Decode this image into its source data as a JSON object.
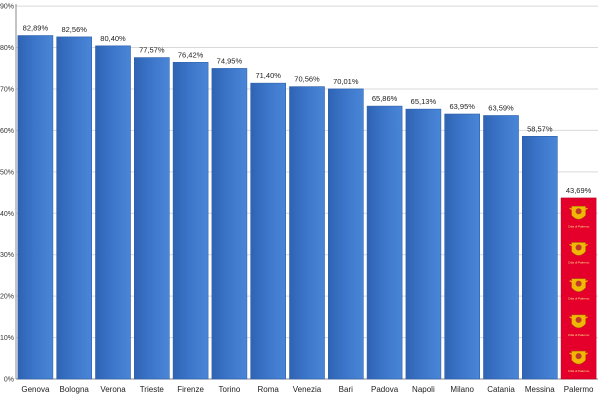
{
  "chart_data": {
    "type": "bar",
    "title": "",
    "xlabel": "",
    "ylabel": "",
    "ylim": [
      0,
      100
    ],
    "yticks": [
      "0%",
      "10%",
      "20%",
      "30%",
      "40%",
      "50%",
      "60%",
      "70%",
      "80%",
      "90%"
    ],
    "categories": [
      "Genova",
      "Bologna",
      "Verona",
      "Trieste",
      "Firenze",
      "Torino",
      "Roma",
      "Venezia",
      "Bari",
      "Padova",
      "Napoli",
      "Milano",
      "Catania",
      "Messina",
      "Palermo"
    ],
    "values": [
      82.89,
      82.56,
      80.4,
      77.57,
      76.42,
      74.95,
      71.4,
      70.56,
      70.01,
      65.86,
      65.13,
      63.95,
      63.59,
      58.57,
      43.69
    ],
    "value_labels": [
      "82,89%",
      "82,56%",
      "80,40%",
      "77,57%",
      "76,42%",
      "74,95%",
      "71,40%",
      "70,56%",
      "70,01%",
      "65,86%",
      "65,13%",
      "63,95%",
      "63,59%",
      "58,57%",
      "43,69%"
    ],
    "grid": true,
    "legend": "none",
    "colors": {
      "bar": "#3b75c9",
      "bar_edge": "#2d5fa8",
      "highlight": "#e4002b",
      "grid": "#d9d9d9"
    },
    "highlight_category": "Palermo",
    "highlight_decoration": {
      "icon": "coat-of-arms-icon",
      "count": 5,
      "caption": "Città di Palermo"
    }
  }
}
